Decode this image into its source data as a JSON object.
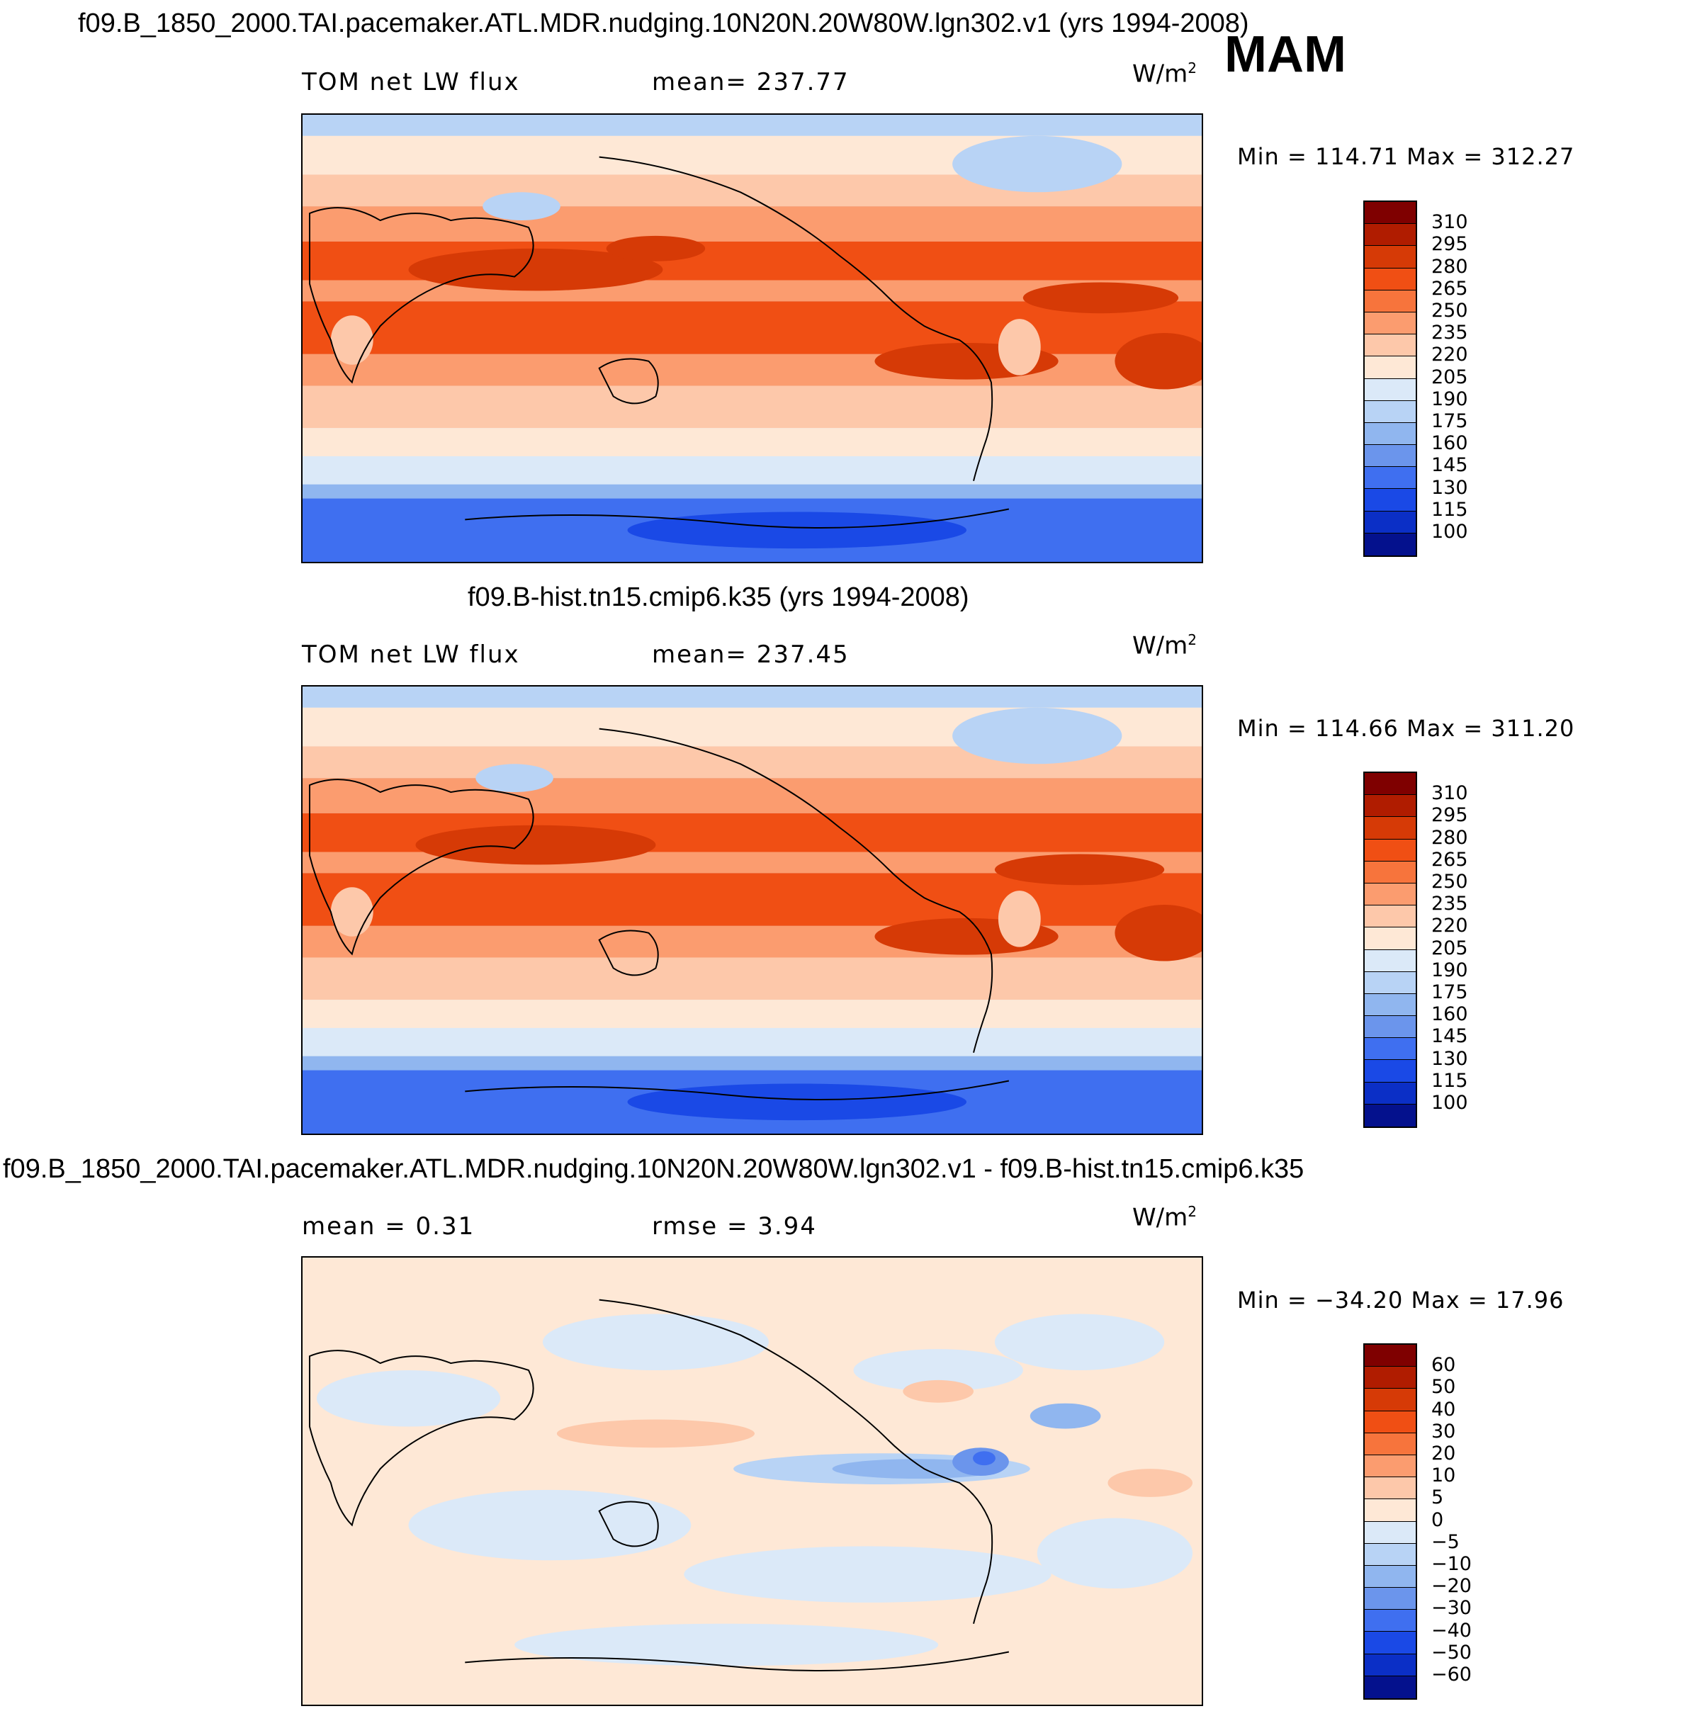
{
  "header": {
    "season": "MAM"
  },
  "panels": [
    {
      "title": "f09.B_1850_2000.TAI.pacemaker.ATL.MDR.nudging.10N20N.20W80W.lgn302.v1 (yrs 1994-2008)",
      "left_label": "TOM  net  LW  flux",
      "center_label": "mean=  237.77",
      "units": "W/m",
      "units_sup": "2",
      "minmax": "Min  =  114.71  Max  =  312.27",
      "colorbar_labels": [
        "310",
        "295",
        "280",
        "265",
        "250",
        "235",
        "220",
        "205",
        "190",
        "175",
        "160",
        "145",
        "130",
        "115",
        "100"
      ],
      "colorbar_colors": [
        "#7f0000",
        "#b01c00",
        "#d63a06",
        "#f04f14",
        "#f7743c",
        "#fb9c6f",
        "#fdc8aa",
        "#fee8d6",
        "#dbe9f8",
        "#b8d3f5",
        "#90b6ef",
        "#6b95ec",
        "#3f6ff0",
        "#1a49e6",
        "#0b2fc6",
        "#04118d"
      ]
    },
    {
      "title": "f09.B-hist.tn15.cmip6.k35 (yrs 1994-2008)",
      "left_label": "TOM  net  LW  flux",
      "center_label": "mean=  237.45",
      "units": "W/m",
      "units_sup": "2",
      "minmax": "Min  =  114.66  Max  =  311.20",
      "colorbar_labels": [
        "310",
        "295",
        "280",
        "265",
        "250",
        "235",
        "220",
        "205",
        "190",
        "175",
        "160",
        "145",
        "130",
        "115",
        "100"
      ],
      "colorbar_colors": [
        "#7f0000",
        "#b01c00",
        "#d63a06",
        "#f04f14",
        "#f7743c",
        "#fb9c6f",
        "#fdc8aa",
        "#fee8d6",
        "#dbe9f8",
        "#b8d3f5",
        "#90b6ef",
        "#6b95ec",
        "#3f6ff0",
        "#1a49e6",
        "#0b2fc6",
        "#04118d"
      ]
    },
    {
      "title": "f09.B_1850_2000.TAI.pacemaker.ATL.MDR.nudging.10N20N.20W80W.lgn302.v1 - f09.B-hist.tn15.cmip6.k35",
      "left_label": "mean =     0.31",
      "center_label": "rmse =     3.94",
      "units": "W/m",
      "units_sup": "2",
      "minmax": "Min  = −34.20  Max  =    17.96",
      "colorbar_labels": [
        "60",
        "50",
        "40",
        "30",
        "20",
        "10",
        "5",
        "0",
        "−5",
        "−10",
        "−20",
        "−30",
        "−40",
        "−50",
        "−60"
      ],
      "colorbar_colors": [
        "#7f0000",
        "#b01c00",
        "#d63a06",
        "#f04f14",
        "#f7743c",
        "#fb9c6f",
        "#fdc8aa",
        "#fee8d6",
        "#dbe9f8",
        "#b8d3f5",
        "#90b6ef",
        "#6b95ec",
        "#3f6ff0",
        "#1a49e6",
        "#0b2fc6",
        "#04118d"
      ]
    }
  ]
}
